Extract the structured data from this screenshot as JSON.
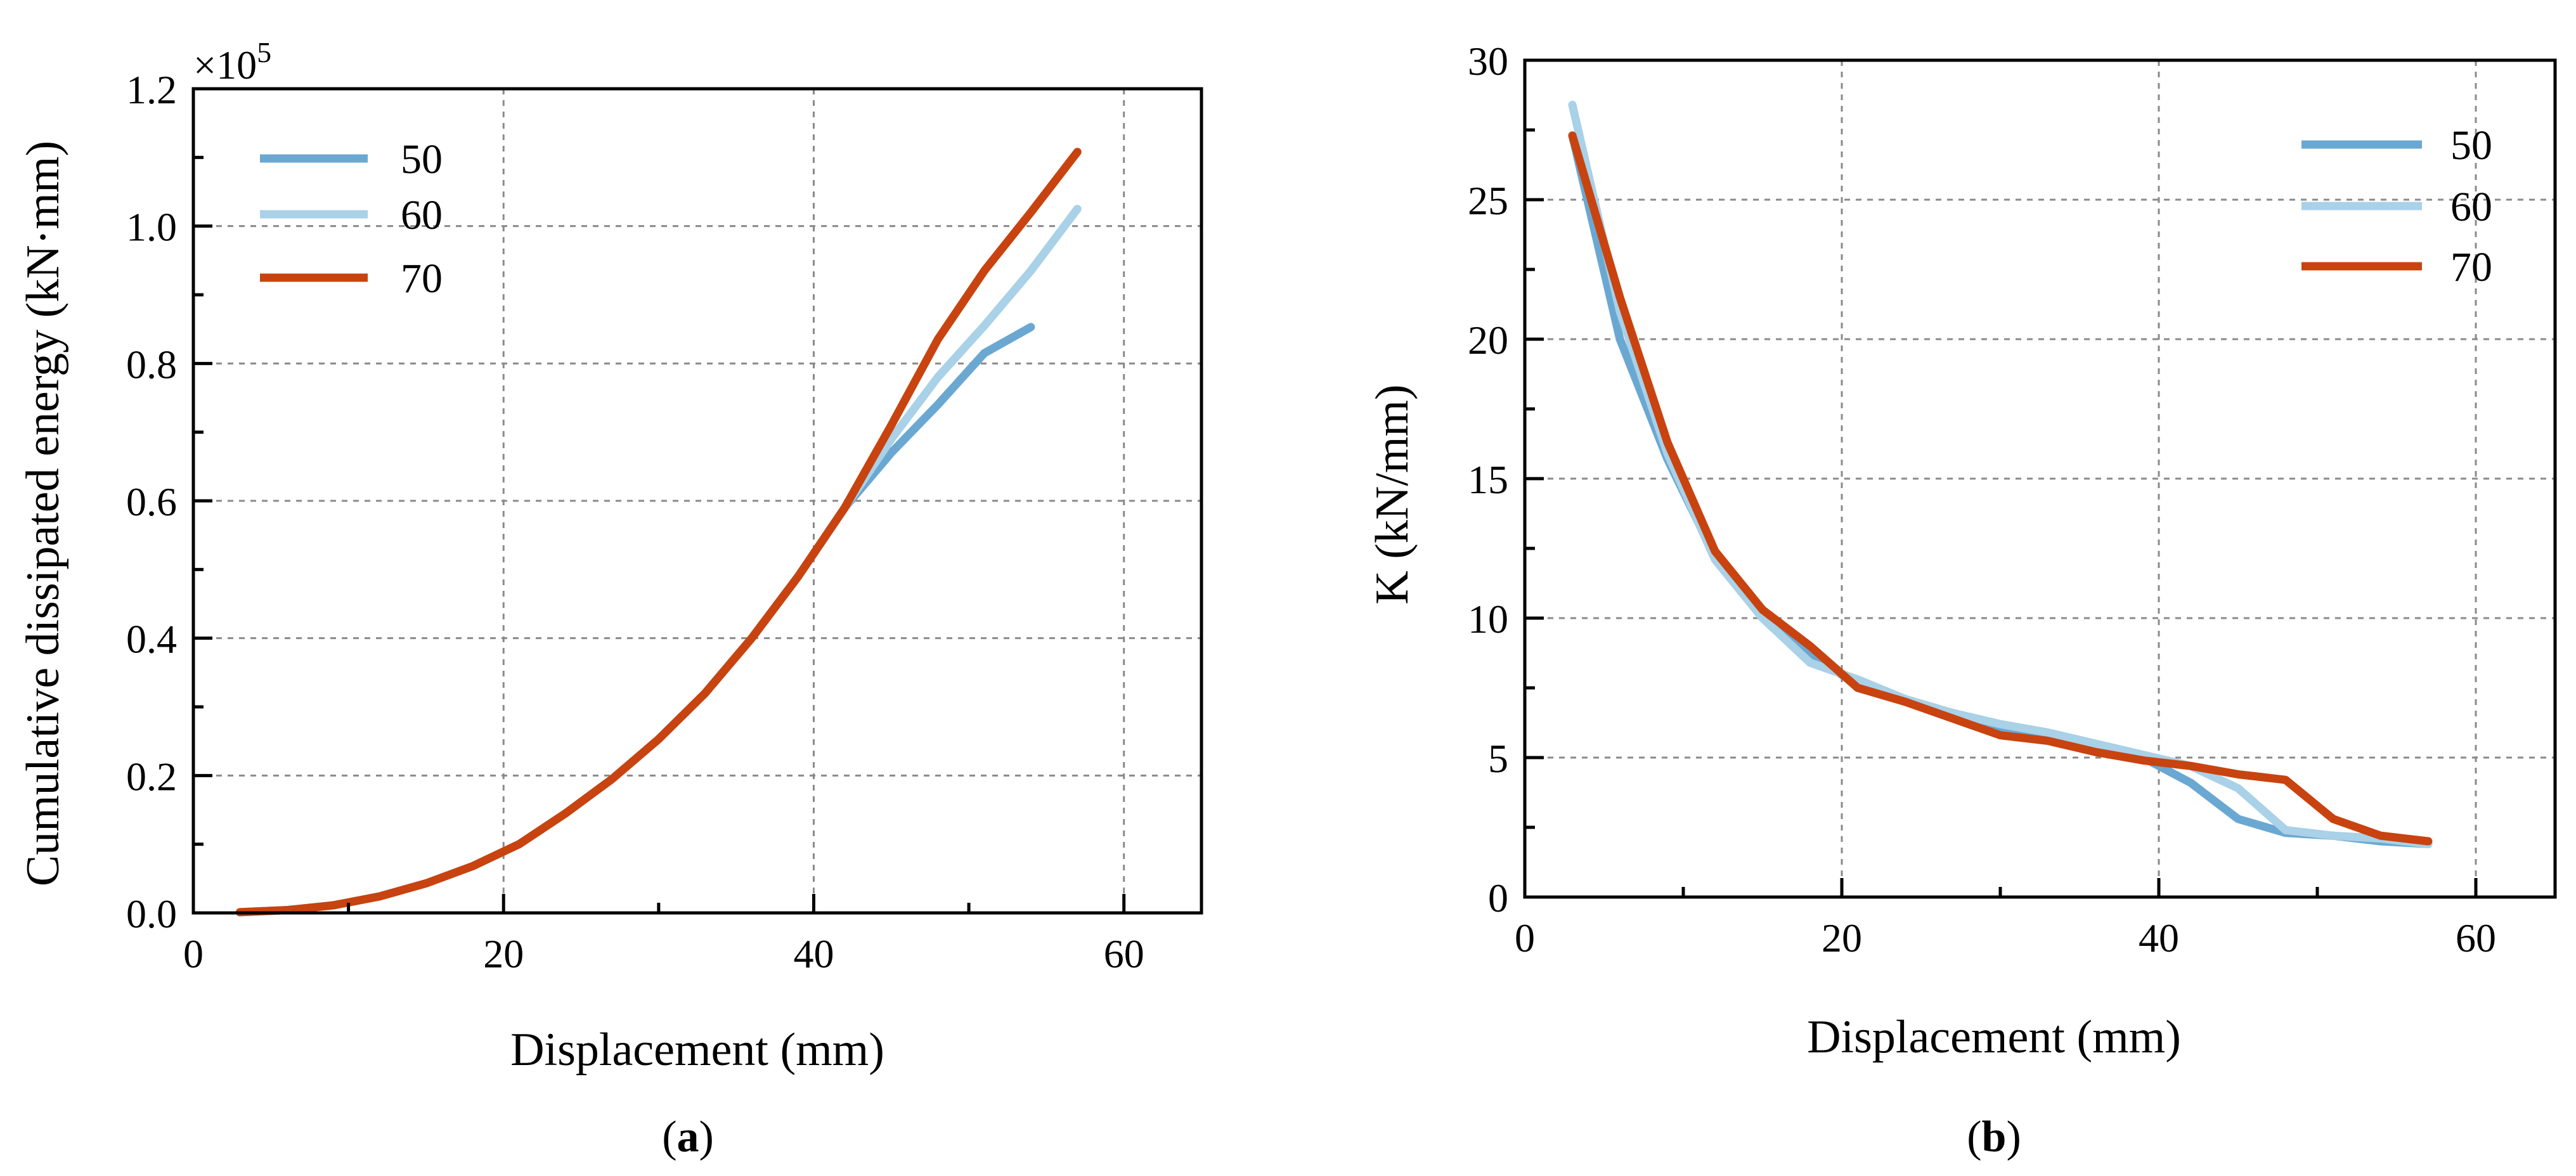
{
  "colors": {
    "s50": "#6aa8d2",
    "s60": "#a9d1e8",
    "s70": "#c8430f"
  },
  "chart_data": [
    {
      "type": "line",
      "panel_label_open": "(",
      "panel_label_letter": "a",
      "panel_label_close": ")",
      "xlabel": "Displacement (mm)",
      "ylabel": "Cumulative dissipated energy (kN·mm)",
      "y_multiplier": "×10",
      "y_multiplier_exponent": "5",
      "xlim": [
        0,
        65
      ],
      "ylim": [
        0,
        1.2
      ],
      "xticks": [
        0,
        20,
        40,
        60
      ],
      "xtick_labels": [
        "0",
        "20",
        "40",
        "60"
      ],
      "yticks": [
        0,
        0.2,
        0.4,
        0.6,
        0.8,
        1.0,
        1.2
      ],
      "ytick_labels": [
        "0.0",
        "0.2",
        "0.4",
        "0.6",
        "0.8",
        "1.0",
        "1.2"
      ],
      "grid": true,
      "legend_position": "top-left",
      "series": [
        {
          "name": "50",
          "color_key": "s50",
          "x": [
            3,
            6,
            9,
            12,
            15,
            18,
            21,
            24,
            27,
            30,
            33,
            36,
            39,
            42,
            45,
            48,
            51,
            54
          ],
          "y": [
            0.001,
            0.004,
            0.011,
            0.024,
            0.043,
            0.068,
            0.1,
            0.145,
            0.195,
            0.253,
            0.32,
            0.4,
            0.49,
            0.59,
            0.67,
            0.74,
            0.815,
            0.853
          ]
        },
        {
          "name": "60",
          "color_key": "s60",
          "x": [
            3,
            6,
            9,
            12,
            15,
            18,
            21,
            24,
            27,
            30,
            33,
            36,
            39,
            42,
            45,
            48,
            51,
            54,
            57
          ],
          "y": [
            0.001,
            0.004,
            0.011,
            0.024,
            0.043,
            0.068,
            0.1,
            0.145,
            0.195,
            0.253,
            0.32,
            0.4,
            0.49,
            0.59,
            0.69,
            0.78,
            0.855,
            0.935,
            1.025
          ]
        },
        {
          "name": "70",
          "color_key": "s70",
          "x": [
            3,
            6,
            9,
            12,
            15,
            18,
            21,
            24,
            27,
            30,
            33,
            36,
            39,
            42,
            45,
            48,
            51,
            54,
            57
          ],
          "y": [
            0.001,
            0.004,
            0.011,
            0.024,
            0.043,
            0.068,
            0.1,
            0.145,
            0.195,
            0.253,
            0.32,
            0.4,
            0.49,
            0.59,
            0.71,
            0.835,
            0.935,
            1.02,
            1.108
          ]
        }
      ]
    },
    {
      "type": "line",
      "panel_label_open": "(",
      "panel_label_letter": "b",
      "panel_label_close": ")",
      "xlabel": "Displacement (mm)",
      "ylabel": "K (kN/mm)",
      "xlim": [
        0,
        65
      ],
      "ylim": [
        0,
        30
      ],
      "xticks": [
        0,
        20,
        40,
        60
      ],
      "xtick_labels": [
        "0",
        "20",
        "40",
        "60"
      ],
      "yticks": [
        0,
        5,
        10,
        15,
        20,
        25,
        30
      ],
      "ytick_labels": [
        "0",
        "5",
        "10",
        "15",
        "20",
        "25",
        "30"
      ],
      "grid": true,
      "legend_position": "top-right",
      "series": [
        {
          "name": "50",
          "color_key": "s50",
          "x": [
            3,
            6,
            9,
            12,
            15,
            18,
            21,
            24,
            27,
            30,
            33,
            36,
            39,
            42,
            45,
            48,
            51,
            54,
            57
          ],
          "y": [
            27.3,
            20.0,
            15.7,
            12.2,
            10.2,
            8.7,
            7.6,
            7.1,
            6.5,
            6.0,
            5.7,
            5.3,
            5.0,
            4.1,
            2.8,
            2.3,
            2.2,
            2.0,
            1.9
          ]
        },
        {
          "name": "60",
          "color_key": "s60",
          "x": [
            3,
            6,
            9,
            12,
            15,
            18,
            21,
            24,
            27,
            30,
            33,
            36,
            39,
            42,
            45,
            48,
            51,
            54,
            57
          ],
          "y": [
            28.4,
            21.0,
            15.9,
            12.1,
            10.0,
            8.4,
            7.8,
            7.1,
            6.6,
            6.2,
            5.9,
            5.5,
            5.1,
            4.7,
            3.9,
            2.4,
            2.2,
            2.1,
            1.9
          ]
        },
        {
          "name": "70",
          "color_key": "s70",
          "x": [
            3,
            6,
            9,
            12,
            15,
            18,
            21,
            24,
            27,
            30,
            33,
            36,
            39,
            42,
            45,
            48,
            51,
            54,
            57
          ],
          "y": [
            27.3,
            21.5,
            16.3,
            12.4,
            10.3,
            9.0,
            7.5,
            7.0,
            6.4,
            5.8,
            5.6,
            5.2,
            4.9,
            4.7,
            4.4,
            4.2,
            2.8,
            2.2,
            2.0
          ]
        }
      ]
    }
  ]
}
